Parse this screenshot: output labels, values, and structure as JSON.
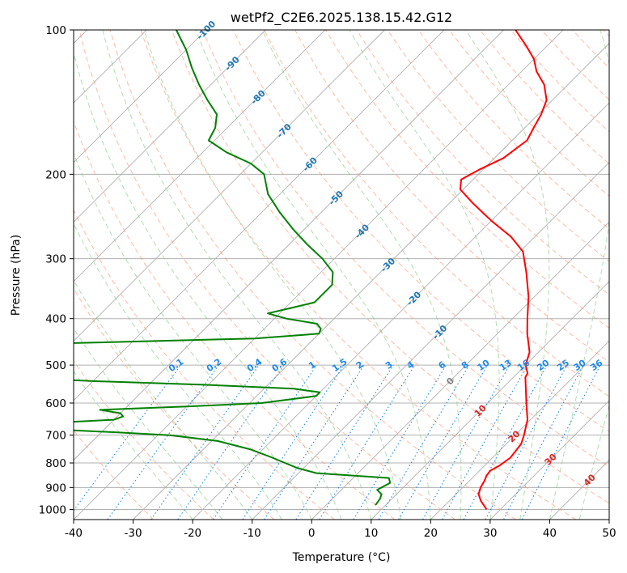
{
  "chart_data": {
    "type": "line",
    "title": "wetPf2_C2E6.2025.138.15.42.G12",
    "xlabel": "Temperature (°C)",
    "ylabel": "Pressure (hPa)",
    "xlim": [
      -40,
      50
    ],
    "ylim": [
      1050,
      100
    ],
    "y_scale": "log",
    "skew": "skew-T log-p",
    "grid": true,
    "x_ticks": [
      "-40",
      "-30",
      "-20",
      "-10",
      "0",
      "10",
      "20",
      "30",
      "40",
      "50"
    ],
    "y_ticks": [
      "100",
      "200",
      "300",
      "400",
      "500",
      "600",
      "700",
      "800",
      "900",
      "1000"
    ],
    "x_tick_values": [
      -40,
      -30,
      -20,
      -10,
      0,
      10,
      20,
      30,
      40,
      50
    ],
    "y_tick_values": [
      100,
      200,
      300,
      400,
      500,
      600,
      700,
      800,
      900,
      1000
    ],
    "series": [
      {
        "color": "#ff0000",
        "points": [
          [
            1000,
            27.7
          ],
          [
            960,
            25.3
          ],
          [
            930,
            23.8
          ],
          [
            900,
            23.0
          ],
          [
            870,
            22.5
          ],
          [
            850,
            22.0
          ],
          [
            830,
            21.8
          ],
          [
            810,
            22.5
          ],
          [
            780,
            23.0
          ],
          [
            730,
            22.5
          ],
          [
            700,
            21.5
          ],
          [
            650,
            19.5
          ],
          [
            600,
            16.5
          ],
          [
            560,
            14.0
          ],
          [
            530,
            12.0
          ],
          [
            520,
            11.7
          ],
          [
            500,
            10.0
          ],
          [
            470,
            8.5
          ],
          [
            430,
            5.0
          ],
          [
            400,
            2.5
          ],
          [
            360,
            -1.0
          ],
          [
            320,
            -5.5
          ],
          [
            290,
            -9.5
          ],
          [
            270,
            -14.0
          ],
          [
            250,
            -20.0
          ],
          [
            230,
            -26.0
          ],
          [
            215,
            -30.5
          ],
          [
            205,
            -32.0
          ],
          [
            195,
            -30.5
          ],
          [
            185,
            -28.5
          ],
          [
            170,
            -27.5
          ],
          [
            160,
            -28.5
          ],
          [
            150,
            -29.5
          ],
          [
            140,
            -31.0
          ],
          [
            130,
            -34.0
          ],
          [
            122,
            -37.5
          ],
          [
            115,
            -40.0
          ],
          [
            108,
            -43.5
          ],
          [
            100,
            -48.0
          ]
        ]
      },
      {
        "color": "#008000",
        "points": [
          [
            980,
            8.3
          ],
          [
            950,
            8.0
          ],
          [
            930,
            7.5
          ],
          [
            910,
            6.0
          ],
          [
            880,
            7.0
          ],
          [
            860,
            6.0
          ],
          [
            840,
            -7.0
          ],
          [
            820,
            -11.0
          ],
          [
            800,
            -14.0
          ],
          [
            780,
            -17.0
          ],
          [
            750,
            -22.0
          ],
          [
            720,
            -29.0
          ],
          [
            700,
            -38.0
          ],
          [
            690,
            -48.0
          ],
          [
            680,
            -60.0
          ],
          [
            670,
            -70.0
          ],
          [
            660,
            -60.0
          ],
          [
            650,
            -50.0
          ],
          [
            640,
            -49.0
          ],
          [
            630,
            -50.0
          ],
          [
            620,
            -54.0
          ],
          [
            610,
            -40.0
          ],
          [
            600,
            -28.0
          ],
          [
            580,
            -20.0
          ],
          [
            570,
            -20.0
          ],
          [
            560,
            -25.0
          ],
          [
            550,
            -40.0
          ],
          [
            540,
            -60.0
          ],
          [
            530,
            -75.0
          ],
          [
            500,
            -75.0
          ],
          [
            460,
            -75.0
          ],
          [
            450,
            -70.0
          ],
          [
            440,
            -40.0
          ],
          [
            430,
            -30.0
          ],
          [
            420,
            -30.5
          ],
          [
            410,
            -32.0
          ],
          [
            400,
            -38.0
          ],
          [
            390,
            -42.0
          ],
          [
            380,
            -39.0
          ],
          [
            370,
            -36.0
          ],
          [
            360,
            -36.0
          ],
          [
            340,
            -36.0
          ],
          [
            320,
            -38.0
          ],
          [
            300,
            -42.0
          ],
          [
            280,
            -47.0
          ],
          [
            260,
            -52.0
          ],
          [
            240,
            -57.0
          ],
          [
            220,
            -62.0
          ],
          [
            200,
            -66.0
          ],
          [
            190,
            -70.0
          ],
          [
            180,
            -76.0
          ],
          [
            170,
            -81.0
          ],
          [
            160,
            -82.0
          ],
          [
            150,
            -84.0
          ],
          [
            140,
            -88.0
          ],
          [
            130,
            -92.0
          ],
          [
            120,
            -96.0
          ],
          [
            110,
            -100.0
          ],
          [
            100,
            -105.0
          ]
        ]
      }
    ],
    "isotherm_labels": [
      "-100",
      "-90",
      "-80",
      "-70",
      "-60",
      "-50",
      "-40",
      "-30",
      "-20",
      "-10",
      "0",
      "10",
      "20",
      "30",
      "40"
    ],
    "isotherm_label_values": [
      -100,
      -90,
      -80,
      -70,
      -60,
      -50,
      -40,
      -30,
      -20,
      -10,
      0,
      10,
      20,
      30,
      40
    ],
    "mixing_ratio_labels": [
      "0.1",
      "0.2",
      "0.4",
      "0.6",
      "1",
      "1.5",
      "2",
      "3",
      "4",
      "6",
      "8",
      "10",
      "13",
      "16",
      "20",
      "25",
      "30",
      "36"
    ],
    "mixing_ratio_values": [
      0.1,
      0.2,
      0.4,
      0.6,
      1,
      1.5,
      2,
      3,
      4,
      6,
      8,
      10,
      13,
      16,
      20,
      25,
      30,
      36
    ],
    "colors": {
      "temperature": "#ff0000",
      "dewpoint": "#008000",
      "isotherm_grid": "#b0b0b0",
      "dry_adiabat": "#ff8c69",
      "moist_adiabat": "#7cc47c",
      "mixing_ratio": "#1e88e5",
      "isotherm_label_cold": "#1f77b4",
      "isotherm_label_warm": "#d62728",
      "isotherm_label_zero": "#808080"
    }
  }
}
